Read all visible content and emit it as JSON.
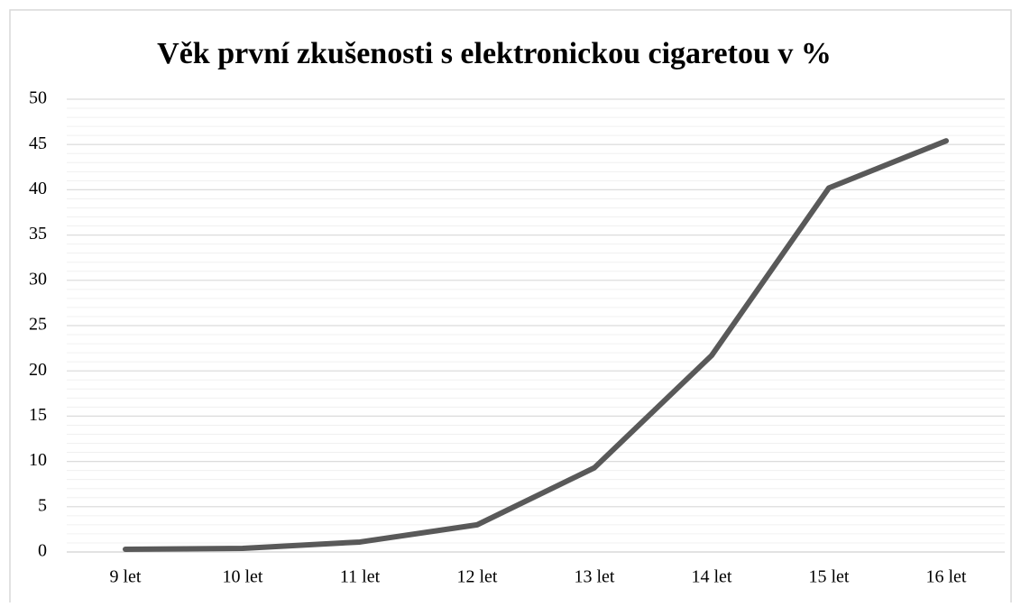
{
  "chart_data": {
    "type": "line",
    "title": "Věk první zkušenosti s elektronickou cigaretou v %",
    "categories": [
      "9 let",
      "10 let",
      "11 let",
      "12 let",
      "13 let",
      "14 let",
      "15 let",
      "16 let"
    ],
    "series": [
      {
        "name": "Věk první zkušenosti",
        "color": "#595959",
        "values": [
          0.3,
          0.4,
          1.1,
          3.0,
          9.3,
          21.7,
          40.2,
          45.4
        ]
      }
    ],
    "ylim": [
      0,
      50
    ],
    "yticks": [
      0,
      5,
      10,
      15,
      20,
      25,
      30,
      35,
      40,
      45,
      50
    ],
    "grid": true,
    "minor_grid_step": 1,
    "legend": false
  }
}
